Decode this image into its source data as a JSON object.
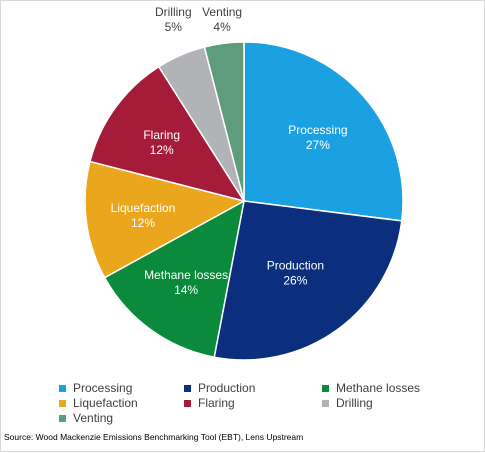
{
  "chart_data": {
    "type": "pie",
    "title": "",
    "slices": [
      {
        "label": "Processing",
        "value": 27,
        "display": "27%",
        "color": "#1ba1e2"
      },
      {
        "label": "Production",
        "value": 26,
        "display": "26%",
        "color": "#0b2f7d"
      },
      {
        "label": "Methane losses",
        "value": 14,
        "display": "14%",
        "color": "#0a8a3a"
      },
      {
        "label": "Liquefaction",
        "value": 12,
        "display": "12%",
        "color": "#eaa61d"
      },
      {
        "label": "Flaring",
        "value": 12,
        "display": "12%",
        "color": "#a51c3a"
      },
      {
        "label": "Drilling",
        "value": 5,
        "display": "5%",
        "color": "#b1b3b6"
      },
      {
        "label": "Venting",
        "value": 4,
        "display": "4%",
        "color": "#5f9c7c"
      }
    ],
    "start_angle": "12 o'clock, clockwise",
    "legend_position": "bottom"
  },
  "source": "Source: Wood Mackenzie Emissions Benchmarking Tool (EBT), Lens Upstream"
}
